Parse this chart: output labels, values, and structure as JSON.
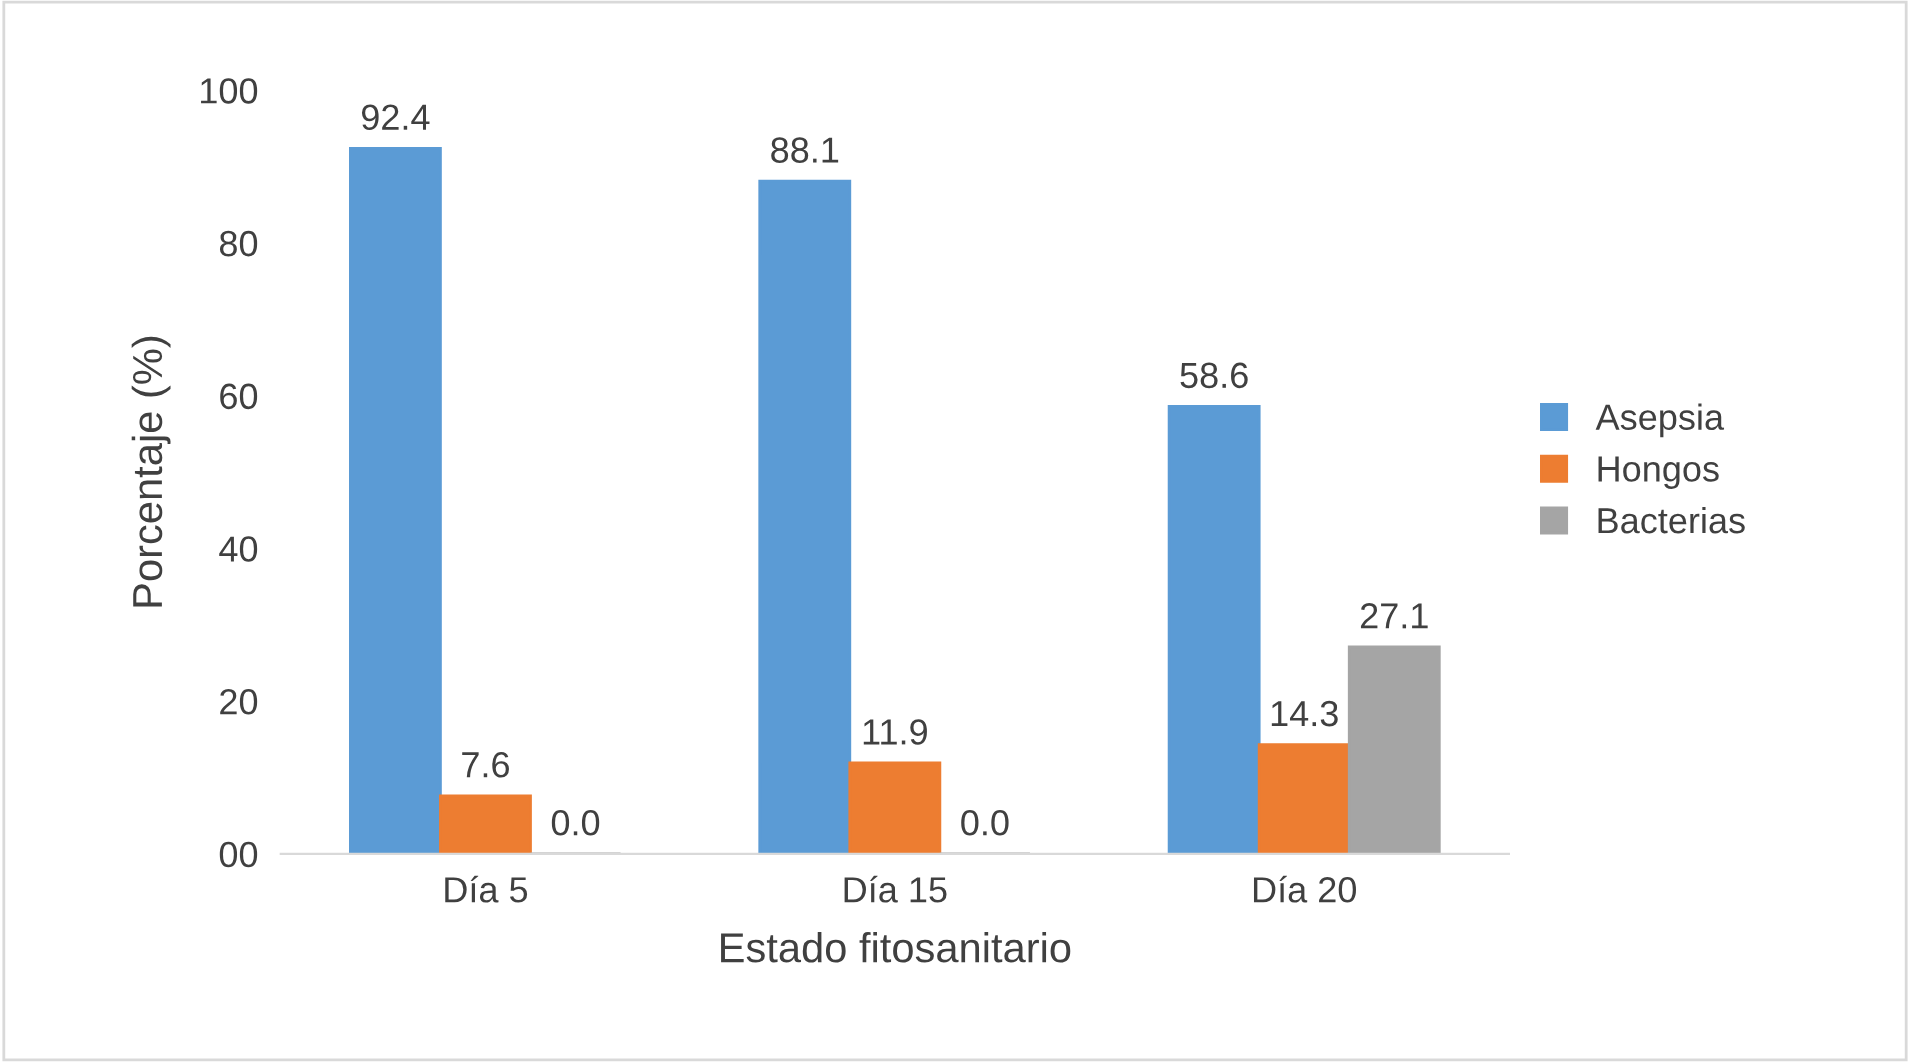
{
  "chart_data": {
    "type": "bar",
    "xlabel": "Estado fitosanitario",
    "ylabel": "Porcentaje (%)",
    "categories": [
      "Día 5",
      "Día 15",
      "Día 20"
    ],
    "series": [
      {
        "name": "Asepsia",
        "color": "#5b9bd5",
        "values": [
          92.4,
          88.1,
          58.6
        ],
        "value_labels": [
          "92.4",
          "88.1",
          "58.6"
        ]
      },
      {
        "name": "Hongos",
        "color": "#ed7d31",
        "values": [
          7.6,
          11.9,
          14.3
        ],
        "value_labels": [
          "7.6",
          "11.9",
          "14.3"
        ]
      },
      {
        "name": "Bacterias",
        "color": "#a5a5a5",
        "values": [
          0,
          0,
          27.1
        ],
        "value_labels": [
          "0.0",
          "0.0",
          "27.1"
        ]
      }
    ],
    "ylim": [
      0,
      100
    ],
    "yticks": [
      {
        "value": 0,
        "label": "00"
      },
      20,
      40,
      60,
      80,
      100
    ],
    "grid": false,
    "legend": "right"
  }
}
